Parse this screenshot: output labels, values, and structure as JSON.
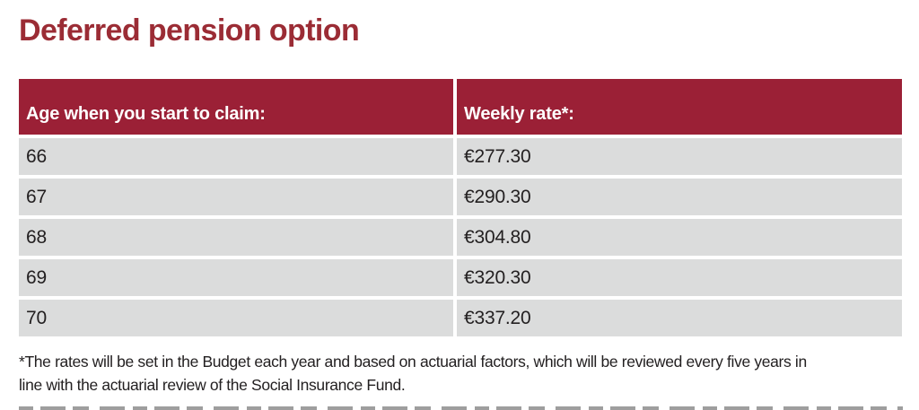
{
  "title": "Deferred pension option",
  "colors": {
    "title": "#9b2c35",
    "header_bg": "#9b2036",
    "row_bg": "#dbdcdc",
    "header_text": "#ffffff",
    "text": "#232021"
  },
  "table": {
    "columns": [
      {
        "label": "Age when you start to claim:"
      },
      {
        "label": "Weekly rate*:"
      }
    ],
    "rows": [
      {
        "age": "66",
        "rate": "€277.30"
      },
      {
        "age": "67",
        "rate": "€290.30"
      },
      {
        "age": "68",
        "rate": "€304.80"
      },
      {
        "age": "69",
        "rate": "€320.30"
      },
      {
        "age": "70",
        "rate": "€337.20"
      }
    ]
  },
  "footnote": {
    "line1": "*The rates will be set in the Budget each year and based on actuarial factors, which will be reviewed every five years in",
    "line2": "line with the actuarial review of the Social Insurance Fund."
  }
}
